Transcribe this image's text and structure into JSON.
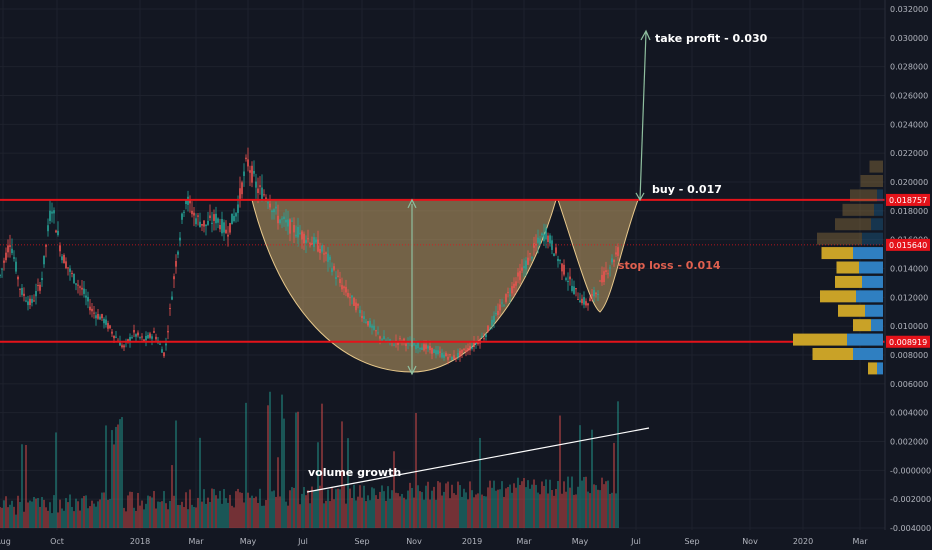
{
  "chart_data": {
    "type": "candlestick",
    "y_ticks": [
      "0.032000",
      "0.030000",
      "0.028000",
      "0.026000",
      "0.024000",
      "0.022000",
      "0.020000",
      "0.018000",
      "0.016000",
      "0.014000",
      "0.012000",
      "0.010000",
      "0.008000",
      "0.006000",
      "0.004000",
      "0.002000",
      "-0.000000",
      "-0.002000",
      "-0.004000"
    ],
    "x_ticks": [
      "Aug",
      "Oct",
      "2018",
      "Mar",
      "May",
      "Jul",
      "Sep",
      "Nov",
      "2019",
      "Mar",
      "May",
      "Jul",
      "Sep",
      "Nov",
      "2020",
      "Mar"
    ],
    "price_levels": [
      {
        "label": "0.018757",
        "value": 0.018757,
        "color": "#e4131a"
      },
      {
        "label": "0.015640",
        "value": 0.01564,
        "color": "#e4131a"
      },
      {
        "label": "0.008919",
        "value": 0.008919,
        "color": "#e4131a"
      }
    ],
    "annotations": {
      "take_profit": "take profit - 0.030",
      "buy": "buy - 0.017",
      "stop_loss": "stop loss - 0.014",
      "volume": "volume growth"
    },
    "price_path": [
      [
        0,
        0.0135
      ],
      [
        1,
        0.016
      ],
      [
        2,
        0.0125
      ],
      [
        3,
        0.0115
      ],
      [
        4,
        0.013
      ],
      [
        5,
        0.0185
      ],
      [
        6,
        0.015
      ],
      [
        7,
        0.0135
      ],
      [
        8,
        0.0125
      ],
      [
        9,
        0.011
      ],
      [
        10,
        0.0105
      ],
      [
        11,
        0.0095
      ],
      [
        12,
        0.0085
      ],
      [
        13,
        0.0095
      ],
      [
        14,
        0.009
      ],
      [
        15,
        0.0095
      ],
      [
        16,
        0.008
      ],
      [
        17,
        0.014
      ],
      [
        18,
        0.019
      ],
      [
        19,
        0.0175
      ],
      [
        20,
        0.017
      ],
      [
        21,
        0.0175
      ],
      [
        22,
        0.0165
      ],
      [
        23,
        0.018
      ],
      [
        24,
        0.0215
      ],
      [
        25,
        0.0195
      ],
      [
        26,
        0.019
      ],
      [
        27,
        0.0175
      ],
      [
        28,
        0.017
      ],
      [
        29,
        0.0165
      ],
      [
        30,
        0.016
      ],
      [
        31,
        0.0155
      ],
      [
        32,
        0.0145
      ],
      [
        33,
        0.013
      ],
      [
        34,
        0.012
      ],
      [
        35,
        0.011
      ],
      [
        36,
        0.01
      ],
      [
        37,
        0.0092
      ],
      [
        38,
        0.0088
      ],
      [
        39,
        0.009
      ],
      [
        40,
        0.0087
      ],
      [
        41,
        0.0086
      ],
      [
        42,
        0.0083
      ],
      [
        43,
        0.008
      ],
      [
        44,
        0.0078
      ],
      [
        45,
        0.0082
      ],
      [
        46,
        0.0087
      ],
      [
        47,
        0.0093
      ],
      [
        48,
        0.0105
      ],
      [
        49,
        0.0118
      ],
      [
        50,
        0.013
      ],
      [
        51,
        0.0142
      ],
      [
        52,
        0.0155
      ],
      [
        53,
        0.0165
      ],
      [
        54,
        0.015
      ],
      [
        55,
        0.0135
      ],
      [
        56,
        0.0122
      ],
      [
        57,
        0.0115
      ],
      [
        58,
        0.0125
      ],
      [
        59,
        0.014
      ],
      [
        60,
        0.0152
      ]
    ],
    "volume_profile": [
      {
        "price": 0.021,
        "left": 0.3,
        "right": 0.0
      },
      {
        "price": 0.02,
        "left": 0.5,
        "right": 0.0
      },
      {
        "price": 0.019,
        "left": 0.6,
        "right": 0.1
      },
      {
        "price": 0.018,
        "left": 0.7,
        "right": 0.15
      },
      {
        "price": 0.017,
        "left": 0.8,
        "right": 0.2
      },
      {
        "price": 0.016,
        "left": 1.0,
        "right": 0.35
      },
      {
        "price": 0.015,
        "left": 0.7,
        "right": 0.5
      },
      {
        "price": 0.014,
        "left": 0.5,
        "right": 0.4
      },
      {
        "price": 0.013,
        "left": 0.6,
        "right": 0.35
      },
      {
        "price": 0.012,
        "left": 0.8,
        "right": 0.45
      },
      {
        "price": 0.011,
        "left": 0.6,
        "right": 0.3
      },
      {
        "price": 0.01,
        "left": 0.4,
        "right": 0.2
      },
      {
        "price": 0.009,
        "left": 1.2,
        "right": 0.6
      },
      {
        "price": 0.008,
        "left": 0.9,
        "right": 0.5
      },
      {
        "price": 0.007,
        "left": 0.2,
        "right": 0.1
      }
    ]
  }
}
